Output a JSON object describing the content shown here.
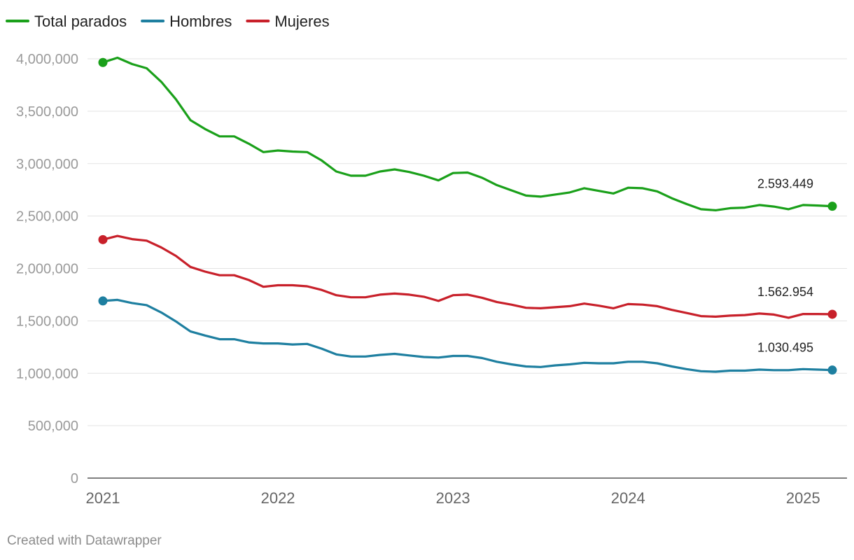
{
  "chart_data": {
    "type": "line",
    "title": "",
    "xlabel": "",
    "ylabel": "",
    "ylim": [
      0,
      4000000
    ],
    "yticks": [
      0,
      500000,
      1000000,
      1500000,
      2000000,
      2500000,
      3000000,
      3500000,
      4000000
    ],
    "ytick_labels": [
      "0",
      "500,000",
      "1,000,000",
      "1,500,000",
      "2,000,000",
      "2,500,000",
      "3,000,000",
      "3,500,000",
      "4,000,000"
    ],
    "xlim": [
      2021.0,
      2025.25
    ],
    "xticks": [
      2021,
      2022,
      2023,
      2024,
      2025
    ],
    "xtick_labels": [
      "2021",
      "2022",
      "2023",
      "2024",
      "2025"
    ],
    "grid": true,
    "legend_position": "top-left",
    "x": [
      2021.0,
      2021.0833,
      2021.1667,
      2021.25,
      2021.3333,
      2021.4167,
      2021.5,
      2021.5833,
      2021.6667,
      2021.75,
      2021.8333,
      2021.9167,
      2022.0,
      2022.0833,
      2022.1667,
      2022.25,
      2022.3333,
      2022.4167,
      2022.5,
      2022.5833,
      2022.6667,
      2022.75,
      2022.8333,
      2022.9167,
      2023.0,
      2023.0833,
      2023.1667,
      2023.25,
      2023.3333,
      2023.4167,
      2023.5,
      2023.5833,
      2023.6667,
      2023.75,
      2023.8333,
      2023.9167,
      2024.0,
      2024.0833,
      2024.1667,
      2024.25,
      2024.3333,
      2024.4167,
      2024.5,
      2024.5833,
      2024.6667,
      2024.75,
      2024.8333,
      2024.9167,
      2025.0,
      2025.0833,
      2025.1667
    ],
    "series": [
      {
        "name": "Total parados",
        "color": "#1aa01a",
        "end_label": "2.593.449",
        "values": [
          3965000,
          4010000,
          3950000,
          3910000,
          3780000,
          3615000,
          3415000,
          3330000,
          3260000,
          3260000,
          3190000,
          3110000,
          3125000,
          3115000,
          3110000,
          3030000,
          2925000,
          2885000,
          2885000,
          2925000,
          2945000,
          2920000,
          2885000,
          2840000,
          2910000,
          2915000,
          2865000,
          2795000,
          2745000,
          2695000,
          2685000,
          2705000,
          2725000,
          2765000,
          2740000,
          2715000,
          2770000,
          2765000,
          2735000,
          2670000,
          2615000,
          2565000,
          2555000,
          2575000,
          2580000,
          2605000,
          2590000,
          2565000,
          2605000,
          2600000,
          2593449
        ]
      },
      {
        "name": "Hombres",
        "color": "#1e7fa0",
        "end_label": "1.030.495",
        "values": [
          1690000,
          1700000,
          1670000,
          1650000,
          1580000,
          1495000,
          1400000,
          1360000,
          1325000,
          1325000,
          1295000,
          1285000,
          1285000,
          1275000,
          1280000,
          1235000,
          1180000,
          1160000,
          1160000,
          1175000,
          1185000,
          1170000,
          1155000,
          1150000,
          1165000,
          1165000,
          1145000,
          1110000,
          1085000,
          1065000,
          1060000,
          1075000,
          1085000,
          1100000,
          1095000,
          1095000,
          1110000,
          1110000,
          1095000,
          1065000,
          1040000,
          1020000,
          1015000,
          1025000,
          1025000,
          1035000,
          1030000,
          1030000,
          1040000,
          1035000,
          1030495
        ]
      },
      {
        "name": "Mujeres",
        "color": "#c8202a",
        "end_label": "1.562.954",
        "values": [
          2275000,
          2310000,
          2280000,
          2265000,
          2200000,
          2120000,
          2015000,
          1970000,
          1935000,
          1935000,
          1890000,
          1825000,
          1840000,
          1840000,
          1830000,
          1795000,
          1745000,
          1725000,
          1725000,
          1750000,
          1760000,
          1750000,
          1730000,
          1690000,
          1745000,
          1750000,
          1720000,
          1680000,
          1655000,
          1625000,
          1620000,
          1630000,
          1640000,
          1665000,
          1645000,
          1620000,
          1660000,
          1655000,
          1640000,
          1605000,
          1575000,
          1545000,
          1540000,
          1550000,
          1555000,
          1570000,
          1560000,
          1530000,
          1565000,
          1565000,
          1562954
        ]
      }
    ]
  },
  "footer": {
    "credit": "Created with Datawrapper"
  }
}
